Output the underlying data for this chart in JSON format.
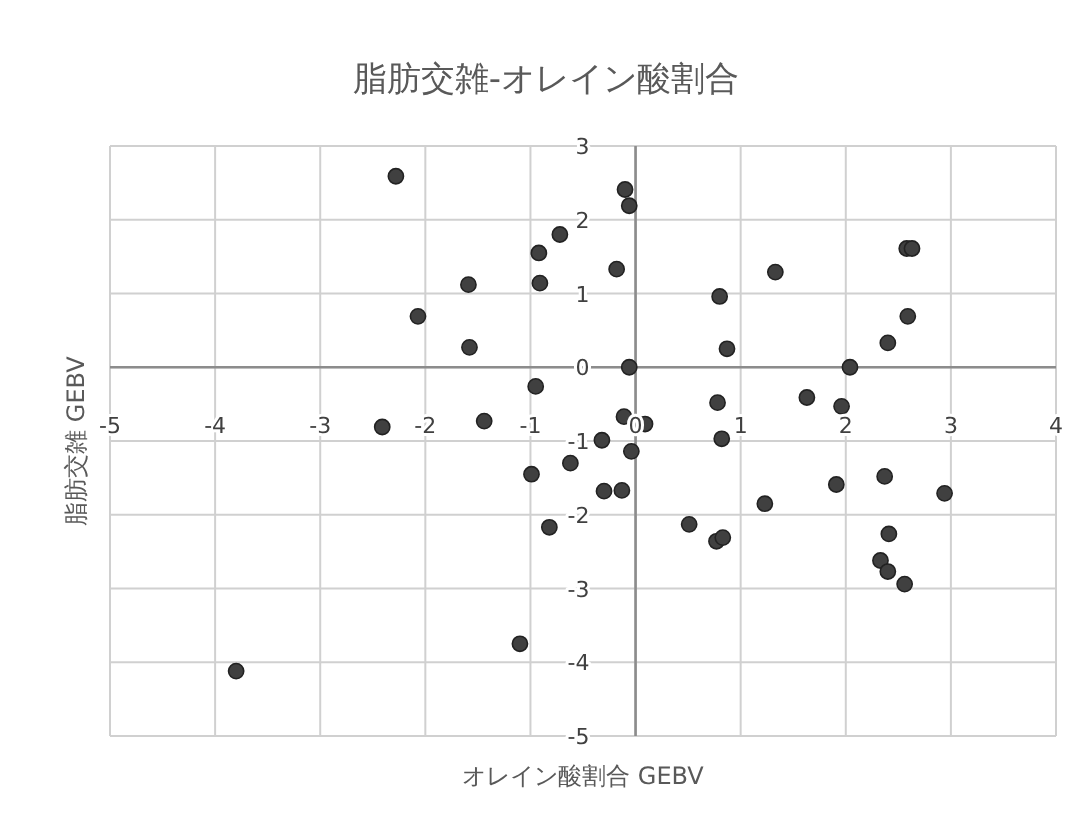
{
  "chart_data": {
    "type": "scatter",
    "title": "脂肪交雑-オレイン酸割合",
    "xlabel": "オレイン酸割合 GEBV",
    "ylabel": "脂肪交雑 GEBV",
    "xlim": [
      -5,
      4
    ],
    "ylim": [
      -5,
      3
    ],
    "xticks": [
      -5,
      -4,
      -3,
      -2,
      -1,
      0,
      1,
      2,
      3,
      4
    ],
    "yticks": [
      -5,
      -4,
      -3,
      -2,
      -1,
      0,
      1,
      2,
      3
    ],
    "grid": true,
    "marker": "circle",
    "series": [
      {
        "color": "#404040",
        "x": [
          -2.28,
          -0.1,
          -0.06,
          -0.72,
          -0.92,
          -0.18,
          -1.59,
          -0.91,
          -2.07,
          -1.58,
          -0.06,
          -0.95,
          -2.41,
          -1.44,
          -0.11,
          0.09,
          -0.32,
          -0.04,
          -0.62,
          -0.99,
          -0.3,
          -0.13,
          -0.82,
          -1.1,
          -3.8,
          1.33,
          0.8,
          0.87,
          2.58,
          2.63,
          2.59,
          2.4,
          2.04,
          1.63,
          0.78,
          1.96,
          0.82,
          1.91,
          2.37,
          2.94,
          1.23,
          0.51,
          0.77,
          0.83,
          2.41,
          2.33,
          2.4,
          2.56
        ],
        "values": [
          2.59,
          2.41,
          2.19,
          1.8,
          1.55,
          1.33,
          1.12,
          1.14,
          0.69,
          0.27,
          0.0,
          -0.26,
          -0.81,
          -0.73,
          -0.67,
          -0.77,
          -0.99,
          -1.14,
          -1.3,
          -1.45,
          -1.68,
          -1.67,
          -2.17,
          -3.75,
          -4.12,
          1.29,
          0.96,
          0.25,
          1.61,
          1.61,
          0.69,
          0.33,
          0.0,
          -0.41,
          -0.48,
          -0.53,
          -0.97,
          -1.59,
          -1.48,
          -1.71,
          -1.85,
          -2.13,
          -2.36,
          -2.31,
          -2.26,
          -2.62,
          -2.77,
          -2.94
        ]
      }
    ]
  }
}
